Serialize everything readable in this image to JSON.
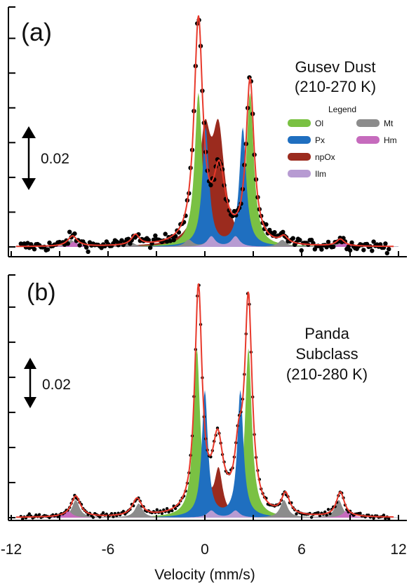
{
  "chart_data": [
    {
      "type": "line",
      "panel_label": "(a)",
      "title_lines": [
        "Gusev Dust",
        "(210-270 K)"
      ],
      "scale_bar_label": "0.02",
      "legend_title": "Legend",
      "legend_position": "right",
      "legend": [
        {
          "name": "Ol",
          "color": "#7ac143"
        },
        {
          "name": "Px",
          "color": "#1f6fc0"
        },
        {
          "name": "npOx",
          "color": "#9b2b1e"
        },
        {
          "name": "Ilm",
          "color": "#b79bd2"
        },
        {
          "name": "Mt",
          "color": "#8c8c8c"
        },
        {
          "name": "Hm",
          "color": "#c66bbd"
        }
      ],
      "xlim": [
        -12,
        12
      ],
      "fit_color": "#e8392b",
      "baseline": 1.0,
      "fit_peaks": [
        {
          "center": -0.4,
          "height": 0.064,
          "width": 0.65
        },
        {
          "center": 0.9,
          "height": 0.02,
          "width": 0.9
        },
        {
          "center": 2.8,
          "height": 0.047,
          "width": 0.6
        },
        {
          "center": -8.2,
          "height": 0.003,
          "width": 0.7
        },
        {
          "center": -4.3,
          "height": 0.003,
          "width": 0.6
        },
        {
          "center": 4.9,
          "height": 0.002,
          "width": 0.6
        },
        {
          "center": 8.4,
          "height": 0.002,
          "width": 0.6
        }
      ],
      "components": [
        {
          "name": "Ol",
          "peaks": [
            {
              "center": -0.4,
              "height": 0.044,
              "width": 0.55
            },
            {
              "center": 2.8,
              "height": 0.044,
              "width": 0.55
            }
          ]
        },
        {
          "name": "Px",
          "peaks": [
            {
              "center": 0.05,
              "height": 0.034,
              "width": 0.5
            },
            {
              "center": 2.35,
              "height": 0.034,
              "width": 0.5
            }
          ]
        },
        {
          "name": "npOx",
          "peaks": [
            {
              "center": 0.0,
              "height": 0.03,
              "width": 0.9
            },
            {
              "center": 0.85,
              "height": 0.03,
              "width": 0.9
            }
          ]
        },
        {
          "name": "Ilm",
          "peaks": [
            {
              "center": 0.4,
              "height": 0.003,
              "width": 0.6
            },
            {
              "center": 1.9,
              "height": 0.003,
              "width": 0.6
            }
          ]
        },
        {
          "name": "Mt",
          "peaks": [
            {
              "center": -8.3,
              "height": 0.002,
              "width": 0.6
            },
            {
              "center": -4.7,
              "height": 0.002,
              "width": 0.6
            },
            {
              "center": -1.0,
              "height": 0.002,
              "width": 0.6
            },
            {
              "center": 0.3,
              "height": 0.002,
              "width": 0.6
            },
            {
              "center": 4.8,
              "height": 0.002,
              "width": 0.6
            },
            {
              "center": 8.2,
              "height": 0.002,
              "width": 0.6
            }
          ]
        },
        {
          "name": "Hm",
          "peaks": [
            {
              "center": -8.1,
              "height": 0.0015,
              "width": 0.6
            },
            {
              "center": 8.6,
              "height": 0.0015,
              "width": 0.6
            }
          ]
        }
      ],
      "noise": 0.0015,
      "scale_bar": 0.02
    },
    {
      "type": "line",
      "panel_label": "(b)",
      "title_lines": [
        "Panda",
        "Subclass",
        "(210-280 K)"
      ],
      "scale_bar_label": "0.02",
      "xlabel": "Velocity (mm/s)",
      "xticks": [
        -12,
        -6,
        0,
        6,
        12
      ],
      "xlim": [
        -12,
        12
      ],
      "fit_color": "#e8392b",
      "baseline": 1.0,
      "fit_peaks": [
        {
          "center": -0.4,
          "height": 0.064,
          "width": 0.55
        },
        {
          "center": 0.8,
          "height": 0.02,
          "width": 0.8
        },
        {
          "center": 2.7,
          "height": 0.06,
          "width": 0.55
        },
        {
          "center": 2.1,
          "height": 0.015,
          "width": 0.6
        },
        {
          "center": -8.0,
          "height": 0.006,
          "width": 0.7
        },
        {
          "center": -4.2,
          "height": 0.005,
          "width": 0.7
        },
        {
          "center": 5.0,
          "height": 0.006,
          "width": 0.6
        },
        {
          "center": 8.4,
          "height": 0.007,
          "width": 0.6
        }
      ],
      "components": [
        {
          "name": "Ol",
          "peaks": [
            {
              "center": -0.5,
              "height": 0.048,
              "width": 0.5
            },
            {
              "center": 2.7,
              "height": 0.048,
              "width": 0.5
            }
          ]
        },
        {
          "name": "Px",
          "peaks": [
            {
              "center": 0.0,
              "height": 0.036,
              "width": 0.45
            },
            {
              "center": 2.2,
              "height": 0.036,
              "width": 0.45
            }
          ]
        },
        {
          "name": "npOx",
          "peaks": [
            {
              "center": 0.0,
              "height": 0.013,
              "width": 0.6
            },
            {
              "center": 0.85,
              "height": 0.013,
              "width": 0.6
            }
          ]
        },
        {
          "name": "Ilm",
          "peaks": [
            {
              "center": 0.4,
              "height": 0.002,
              "width": 0.6
            },
            {
              "center": 1.9,
              "height": 0.002,
              "width": 0.6
            }
          ]
        },
        {
          "name": "Mt",
          "peaks": [
            {
              "center": -8.0,
              "height": 0.005,
              "width": 0.55
            },
            {
              "center": -4.1,
              "height": 0.004,
              "width": 0.55
            },
            {
              "center": 4.9,
              "height": 0.005,
              "width": 0.55
            },
            {
              "center": 8.3,
              "height": 0.005,
              "width": 0.55
            }
          ]
        },
        {
          "name": "Hm",
          "peaks": [
            {
              "center": -8.5,
              "height": 0.002,
              "width": 0.6
            },
            {
              "center": 8.8,
              "height": 0.002,
              "width": 0.6
            }
          ]
        }
      ],
      "noise": 0.0007,
      "scale_bar": 0.02
    }
  ]
}
